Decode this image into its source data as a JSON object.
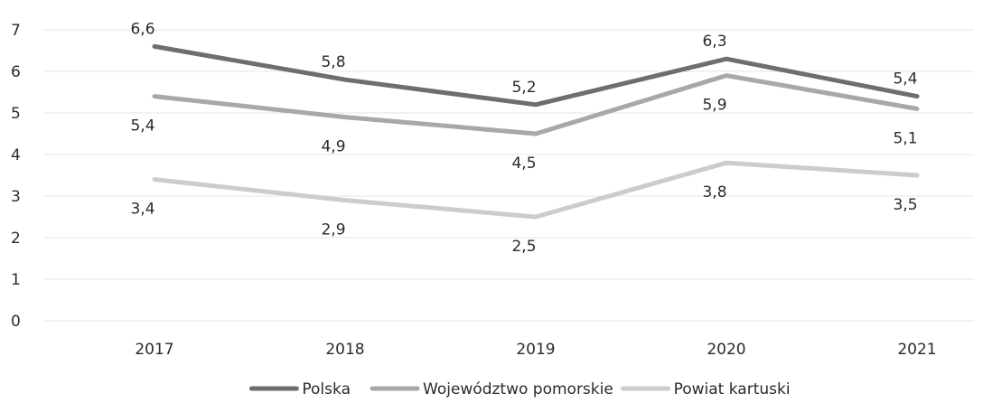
{
  "chart_data": {
    "type": "line",
    "title": "",
    "xlabel": "",
    "ylabel": "",
    "categories": [
      "2017",
      "2018",
      "2019",
      "2020",
      "2021"
    ],
    "ylim": [
      0,
      7
    ],
    "yticks": [
      0,
      1,
      2,
      3,
      4,
      5,
      6,
      7
    ],
    "grid": true,
    "legend_position": "bottom",
    "data_label_format": "decimal-comma",
    "series": [
      {
        "name": "Polska",
        "values": [
          6.6,
          5.8,
          5.2,
          6.3,
          5.4
        ],
        "color": "#6e6e6e"
      },
      {
        "name": "Województwo pomorskie",
        "values": [
          5.4,
          4.9,
          4.5,
          5.9,
          5.1
        ],
        "color": "#a8a8a8"
      },
      {
        "name": "Powiat kartuski",
        "values": [
          3.4,
          2.9,
          2.5,
          3.8,
          3.5
        ],
        "color": "#cccccc"
      }
    ]
  }
}
